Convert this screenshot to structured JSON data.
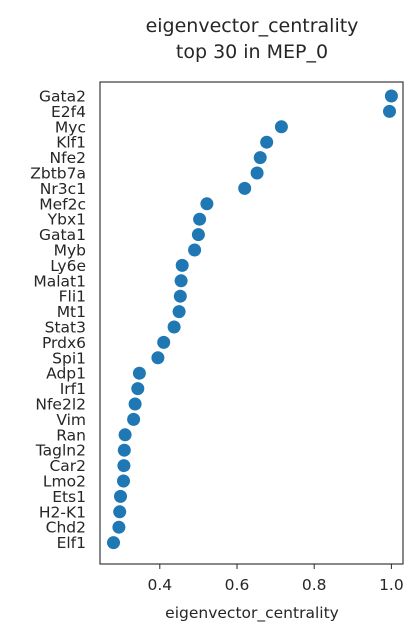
{
  "chart_data": {
    "type": "scatter",
    "title": [
      "eigenvector_centrality",
      "top 30 in MEP_0"
    ],
    "xlabel": "eigenvector_centrality",
    "ylabel": "",
    "xlim": [
      0.245,
      1.03
    ],
    "xticks": [
      0.4,
      0.6,
      0.8,
      1.0
    ],
    "xtick_labels": [
      "0.4",
      "0.6",
      "0.8",
      "1.0"
    ],
    "grid": false,
    "marker_color": "#1f77b4",
    "categories": [
      "Gata2",
      "E2f4",
      "Myc",
      "Klf1",
      "Nfe2",
      "Zbtb7a",
      "Nr3c1",
      "Mef2c",
      "Ybx1",
      "Gata1",
      "Myb",
      "Ly6e",
      "Malat1",
      "Fli1",
      "Mt1",
      "Stat3",
      "Prdx6",
      "Spi1",
      "Adp1",
      "Irf1",
      "Nfe2l2",
      "Vim",
      "Ran",
      "Tagln2",
      "Car2",
      "Lmo2",
      "Ets1",
      "H2-K1",
      "Chd2",
      "Elf1"
    ],
    "values": [
      1.0,
      0.995,
      0.715,
      0.677,
      0.66,
      0.652,
      0.62,
      0.522,
      0.503,
      0.5,
      0.49,
      0.458,
      0.455,
      0.453,
      0.45,
      0.437,
      0.41,
      0.395,
      0.347,
      0.343,
      0.336,
      0.332,
      0.31,
      0.308,
      0.307,
      0.306,
      0.298,
      0.296,
      0.294,
      0.28
    ]
  }
}
